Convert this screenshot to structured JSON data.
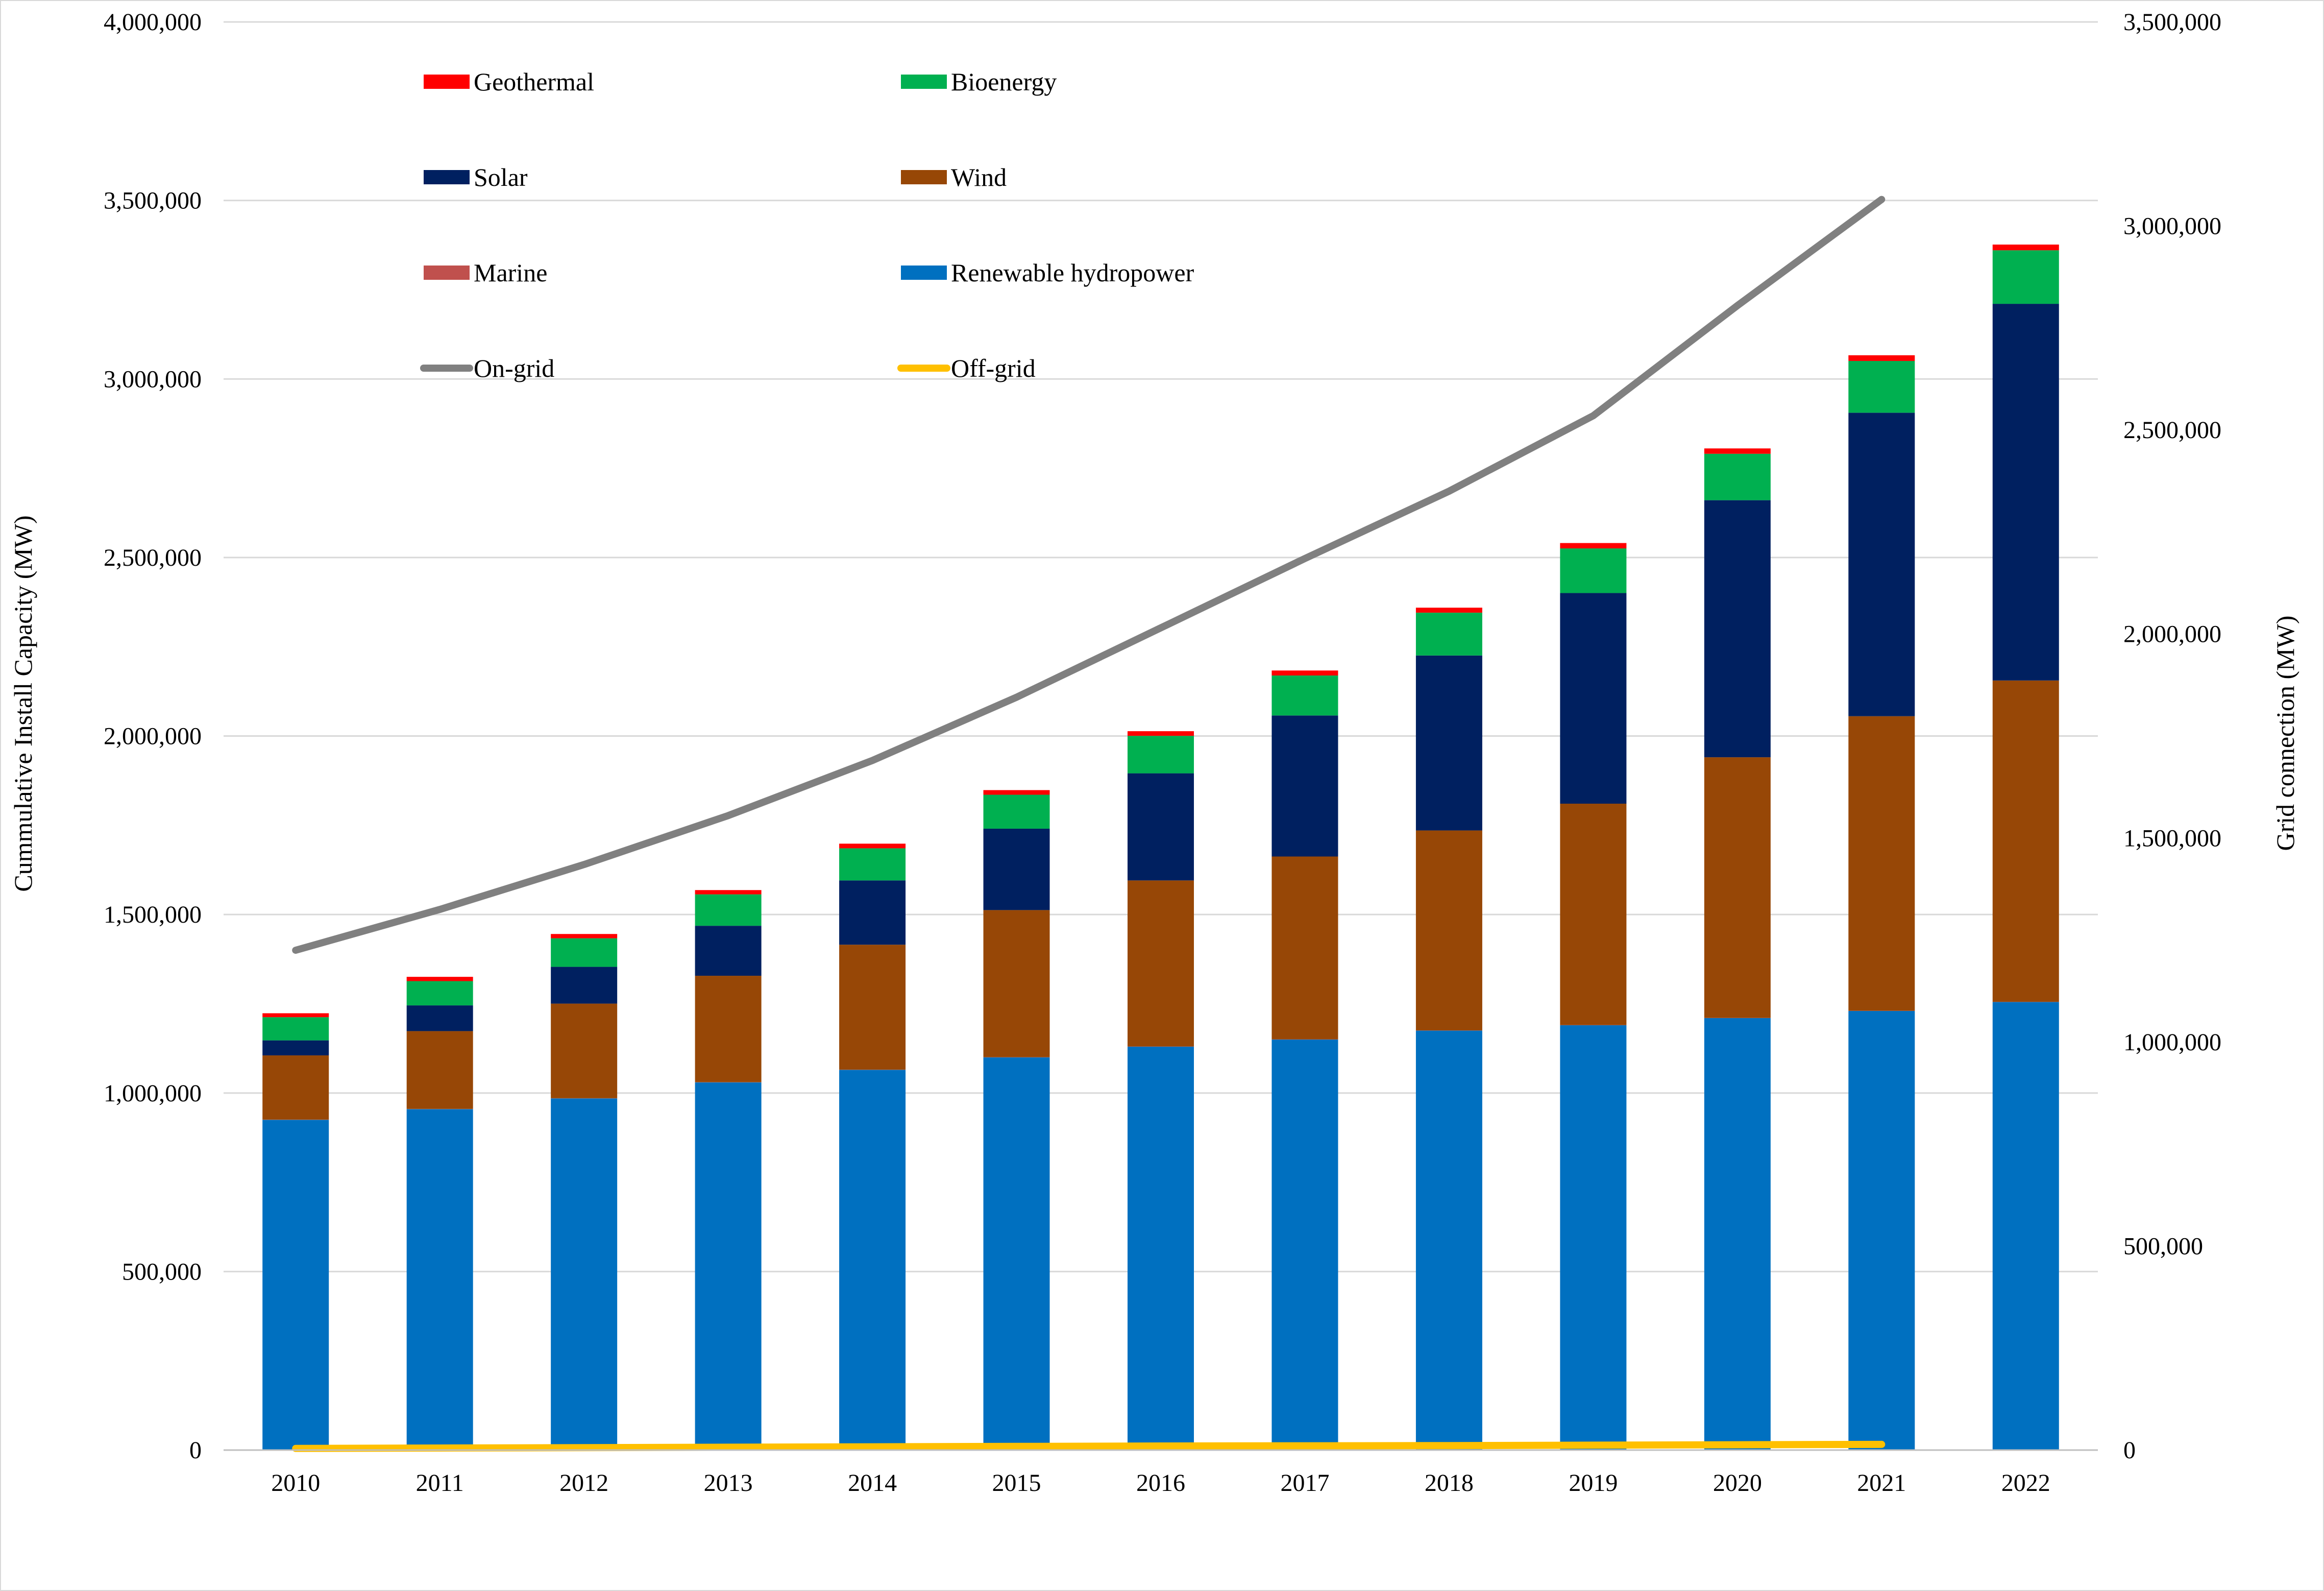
{
  "chart_data": {
    "type": "bar",
    "stacked": true,
    "categories": [
      "2010",
      "2011",
      "2012",
      "2013",
      "2014",
      "2015",
      "2016",
      "2017",
      "2018",
      "2019",
      "2020",
      "2021",
      "2022"
    ],
    "ylabel": "Cummulative Install Capacity (MW)",
    "y2label": "Grid connection (MW)",
    "ylim": [
      0,
      4000000
    ],
    "y2lim": [
      0,
      3500000
    ],
    "yticks": [
      "0",
      "500,000",
      "1,000,000",
      "1,500,000",
      "2,000,000",
      "2,500,000",
      "3,000,000",
      "3,500,000",
      "4,000,000"
    ],
    "y2ticks": [
      "0",
      "500,000",
      "1,000,000",
      "1,500,000",
      "2,000,000",
      "2,500,000",
      "3,000,000",
      "3,500,000"
    ],
    "grid": true,
    "legend_position": "top-left, inside plot",
    "series": [
      {
        "name": "Renewable hydropower",
        "color": "#0070C0",
        "axis": "left",
        "values": [
          925000,
          955000,
          985000,
          1030000,
          1065000,
          1100000,
          1130000,
          1150000,
          1175000,
          1190000,
          1210000,
          1230000,
          1255000
        ]
      },
      {
        "name": "Marine",
        "color": "#C0504D",
        "axis": "left",
        "values": [
          500,
          500,
          500,
          500,
          500,
          500,
          500,
          500,
          500,
          500,
          500,
          500,
          500
        ]
      },
      {
        "name": "Wind",
        "color": "#974706",
        "axis": "left",
        "values": [
          180000,
          218000,
          265000,
          298000,
          350000,
          412000,
          465000,
          512000,
          560000,
          620000,
          730000,
          825000,
          900000
        ]
      },
      {
        "name": "Solar",
        "color": "#002060",
        "axis": "left",
        "values": [
          42000,
          72000,
          103000,
          140000,
          180000,
          228000,
          300000,
          395000,
          490000,
          590000,
          720000,
          850000,
          1055000
        ]
      },
      {
        "name": "Bioenergy",
        "color": "#00B050",
        "axis": "left",
        "values": [
          65000,
          68000,
          80000,
          88000,
          90000,
          95000,
          105000,
          112000,
          120000,
          125000,
          130000,
          145000,
          150000
        ]
      },
      {
        "name": "Geothermal",
        "color": "#FF0000",
        "axis": "left",
        "values": [
          11000,
          12000,
          12000,
          12000,
          13000,
          13000,
          13000,
          14000,
          14000,
          15000,
          15000,
          16000,
          16000
        ]
      }
    ],
    "lines": [
      {
        "name": "On-grid",
        "color": "#808080",
        "axis": "right",
        "values": [
          1225000,
          1325000,
          1435000,
          1555000,
          1690000,
          1845000,
          2015000,
          2185000,
          2350000,
          2535000,
          2805000,
          3065000,
          null
        ]
      },
      {
        "name": "Off-grid",
        "color": "#FFC000",
        "axis": "right",
        "values": [
          4000,
          5000,
          6000,
          7000,
          8000,
          9000,
          10000,
          10500,
          11000,
          12000,
          13000,
          14000,
          null
        ]
      }
    ],
    "legend_order": [
      "Geothermal",
      "Bioenergy",
      "Solar",
      "Wind",
      "Marine",
      "Renewable hydropower",
      "On-grid",
      "Off-grid"
    ]
  }
}
